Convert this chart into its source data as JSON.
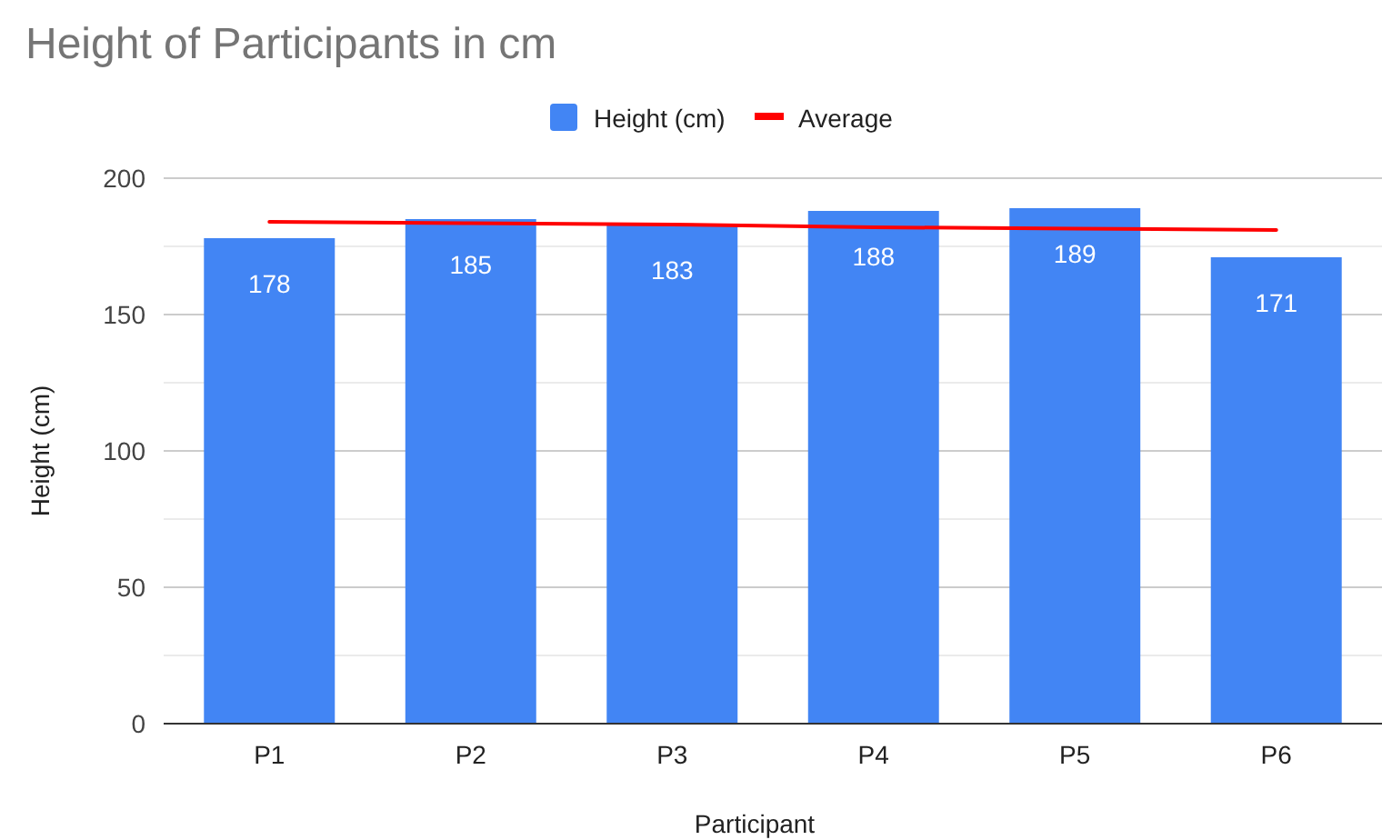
{
  "chart_data": {
    "type": "bar",
    "title": "Height of Participants in cm",
    "xlabel": "Participant",
    "ylabel": "Height (cm)",
    "categories": [
      "P1",
      "P2",
      "P3",
      "P4",
      "P5",
      "P6"
    ],
    "series": [
      {
        "name": "Height (cm)",
        "color": "#4285f4",
        "values": [
          178,
          185,
          183,
          188,
          189,
          171
        ],
        "value_labels": [
          "178",
          "185",
          "183",
          "188",
          "189",
          "171"
        ]
      },
      {
        "name": "Average",
        "type": "line",
        "color": "#ff0000",
        "values": [
          184,
          183.5,
          183,
          182,
          181.5,
          181
        ]
      }
    ],
    "ylim": [
      0,
      200
    ],
    "yticks": [
      0,
      50,
      100,
      150,
      200
    ],
    "grid": "y",
    "legend": "top"
  }
}
